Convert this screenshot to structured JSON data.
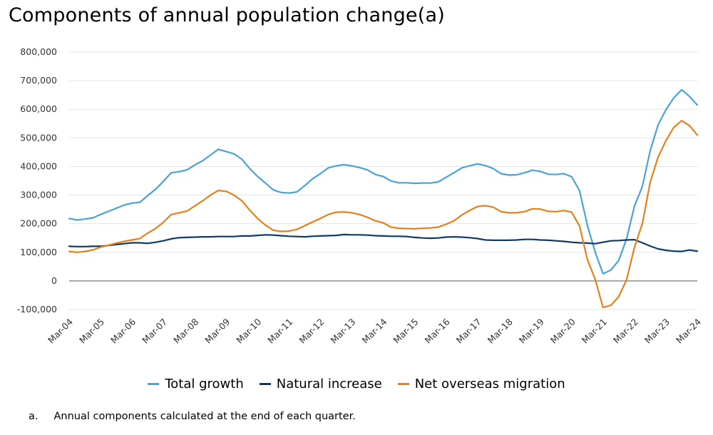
{
  "title": "Components of annual population change(a)",
  "colors": {
    "total_growth": "#4aa3d6",
    "natural_increase": "#0d3b66",
    "net_overseas_migration": "#e5801a",
    "grid": "#e3e3e3",
    "zero_line": "#a6a6a6"
  },
  "footnote": {
    "marker": "a.",
    "text": "Annual components calculated at the end of each quarter."
  },
  "chart_data": {
    "type": "line",
    "title": "Components of annual population change(a)",
    "xlabel": "",
    "ylabel": "",
    "ylim": [
      -100000,
      800000
    ],
    "yticks": [
      -100000,
      0,
      100000,
      200000,
      300000,
      400000,
      500000,
      600000,
      700000,
      800000
    ],
    "ytick_labels": [
      "-100,000",
      "0",
      "100,000",
      "200,000",
      "300,000",
      "400,000",
      "500,000",
      "600,000",
      "700,000",
      "800,000"
    ],
    "xtick_labels": [
      "Mar-04",
      "Mar-05",
      "Mar-06",
      "Mar-07",
      "Mar-08",
      "Mar-09",
      "Mar-10",
      "Mar-11",
      "Mar-12",
      "Mar-13",
      "Mar-14",
      "Mar-15",
      "Mar-16",
      "Mar-17",
      "Mar-18",
      "Mar-19",
      "Mar-20",
      "Mar-21",
      "Mar-22",
      "Mar-23",
      "Mar-24"
    ],
    "grid": true,
    "legend_position": "bottom",
    "series": [
      {
        "name": "Total growth",
        "values": [
          218000,
          213000,
          216000,
          220000,
          232000,
          243000,
          254000,
          265000,
          272000,
          275000,
          298000,
          320000,
          348000,
          378000,
          382000,
          388000,
          405000,
          420000,
          440000,
          460000,
          452000,
          444000,
          425000,
          393000,
          365000,
          342000,
          318000,
          309000,
          307000,
          311000,
          333000,
          357000,
          375000,
          395000,
          402000,
          406000,
          402000,
          396000,
          388000,
          372000,
          365000,
          349000,
          343000,
          343000,
          341000,
          342000,
          342000,
          346000,
          362000,
          378000,
          395000,
          402000,
          409000,
          403000,
          393000,
          375000,
          370000,
          371000,
          378000,
          387000,
          383000,
          373000,
          372000,
          375000,
          364000,
          315000,
          195000,
          100000,
          25000,
          38000,
          72000,
          148000,
          262000,
          330000,
          455000,
          545000,
          598000,
          640000,
          668000,
          645000,
          615000
        ]
      },
      {
        "name": "Natural increase",
        "values": [
          121000,
          120000,
          120000,
          121000,
          121000,
          124000,
          127000,
          130000,
          133000,
          133000,
          131000,
          135000,
          140000,
          147000,
          151000,
          152000,
          153000,
          154000,
          154000,
          155000,
          155000,
          155000,
          157000,
          157000,
          159000,
          161000,
          160000,
          158000,
          156000,
          155000,
          154000,
          156000,
          157000,
          158000,
          159000,
          162000,
          161000,
          161000,
          160000,
          158000,
          157000,
          156000,
          156000,
          155000,
          152000,
          150000,
          149000,
          150000,
          153000,
          154000,
          153000,
          151000,
          148000,
          143000,
          142000,
          142000,
          142000,
          143000,
          145000,
          145000,
          143000,
          142000,
          140000,
          138000,
          135000,
          133000,
          132000,
          130000,
          135000,
          140000,
          141000,
          143000,
          144000,
          133000,
          122000,
          112000,
          107000,
          104000,
          103000,
          108000,
          104000
        ]
      },
      {
        "name": "Net overseas migration",
        "values": [
          103000,
          100000,
          103000,
          108000,
          118000,
          125000,
          132000,
          138000,
          143000,
          148000,
          167000,
          183000,
          205000,
          232000,
          238000,
          244000,
          262000,
          280000,
          300000,
          316000,
          313000,
          300000,
          280000,
          247000,
          218000,
          195000,
          177000,
          173000,
          174000,
          180000,
          193000,
          206000,
          218000,
          232000,
          240000,
          241000,
          238000,
          232000,
          222000,
          210000,
          203000,
          188000,
          184000,
          183000,
          182000,
          184000,
          185000,
          188000,
          198000,
          210000,
          230000,
          246000,
          260000,
          263000,
          258000,
          242000,
          238000,
          238000,
          242000,
          252000,
          251000,
          243000,
          242000,
          246000,
          240000,
          192000,
          75000,
          5000,
          -93000,
          -85000,
          -55000,
          5000,
          118000,
          200000,
          345000,
          432000,
          490000,
          537000,
          560000,
          543000,
          510000
        ]
      }
    ]
  }
}
